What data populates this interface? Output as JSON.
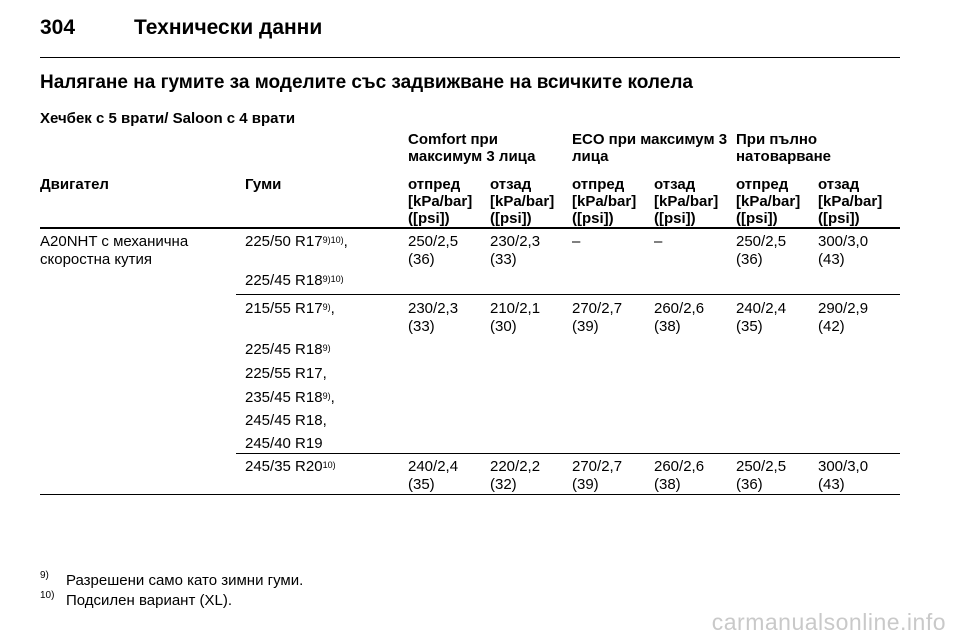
{
  "header": {
    "page_number": "304",
    "chapter_title": "Технически данни"
  },
  "section_title": "Налягане на гумите за моделите със задвижване на всичките колела",
  "subtitle": "Хечбек с 5 врати/ Saloon с 4 врати",
  "table": {
    "groups": [
      "Comfort при максимум 3 лица",
      "ECO при максимум 3 лица",
      "При пълно натоварване"
    ],
    "col_engine": "Двигател",
    "col_tyres": "Гуми",
    "front": "отпред",
    "rear": "отзад",
    "unit": "[kPa/bar] ([psi])",
    "engine_value": "A20NHT с механична скоростна кутия",
    "row1": {
      "tyres": [
        {
          "size": "225/50 R17",
          "sup": "9)10)",
          "suffix": ","
        },
        {
          "size": "225/45 R18",
          "sup": "9)10)",
          "suffix": ""
        }
      ],
      "values": [
        "250/2,5 (36)",
        "230/2,3 (33)",
        "–",
        "–",
        "250/2,5 (36)",
        "300/3,0 (43)"
      ]
    },
    "row2": {
      "tyres": [
        {
          "size": "215/55 R17",
          "sup": "9)",
          "suffix": ","
        },
        {
          "size": "225/45 R18",
          "sup": "9)",
          "suffix": ""
        },
        {
          "size": "225/55 R17,",
          "sup": "",
          "suffix": ""
        },
        {
          "size": "235/45 R18",
          "sup": "9)",
          "suffix": ","
        },
        {
          "size": "245/45 R18,",
          "sup": "",
          "suffix": ""
        },
        {
          "size": "245/40 R19",
          "sup": "",
          "suffix": ""
        }
      ],
      "values": [
        "230/2,3 (33)",
        "210/2,1 (30)",
        "270/2,7 (39)",
        "260/2,6 (38)",
        "240/2,4 (35)",
        "290/2,9 (42)"
      ]
    },
    "row3": {
      "tyres": [
        {
          "size": "245/35 R20",
          "sup": "10)",
          "suffix": ""
        }
      ],
      "values": [
        "240/2,4 (35)",
        "220/2,2 (32)",
        "270/2,7 (39)",
        "260/2,6 (38)",
        "250/2,5 (36)",
        "300/3,0 (43)"
      ]
    }
  },
  "footnotes": [
    {
      "mark": "9)",
      "text": "Разрешени само като зимни гуми."
    },
    {
      "mark": "10)",
      "text": "Подсилен вариант (XL)."
    }
  ],
  "watermark": "carmanualsonline.info"
}
